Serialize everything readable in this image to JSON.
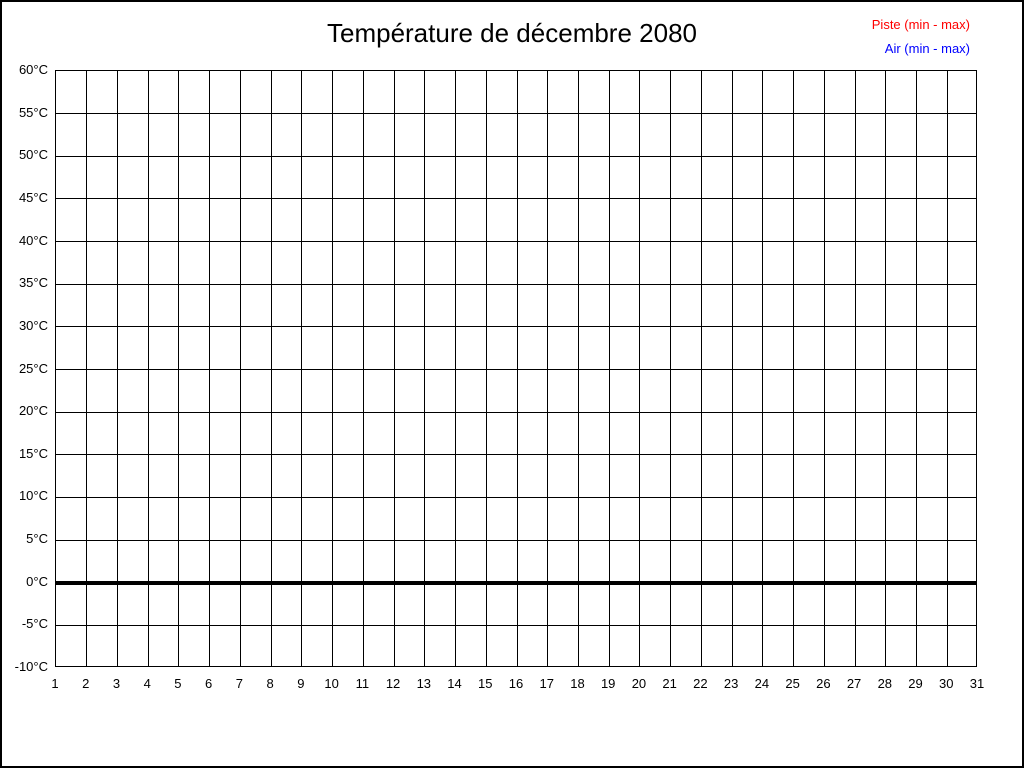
{
  "title": "Température de décembre 2080",
  "legend": {
    "items": [
      {
        "label": "Piste (min - max)",
        "color": "#ff0000"
      },
      {
        "label": "Air (min - max)",
        "color": "#0000ff"
      }
    ]
  },
  "colors": {
    "background": "#ffffff",
    "grid": "#000000",
    "border": "#000000",
    "title": "#000000",
    "piste": "#ff0000",
    "air": "#0000ff"
  },
  "chart_data": {
    "type": "line",
    "title": "Température de décembre 2080",
    "x": [
      1,
      2,
      3,
      4,
      5,
      6,
      7,
      8,
      9,
      10,
      11,
      12,
      13,
      14,
      15,
      16,
      17,
      18,
      19,
      20,
      21,
      22,
      23,
      24,
      25,
      26,
      27,
      28,
      29,
      30,
      31
    ],
    "x_tick_labels": [
      "1",
      "2",
      "3",
      "4",
      "5",
      "6",
      "7",
      "8",
      "9",
      "10",
      "11",
      "12",
      "13",
      "14",
      "15",
      "16",
      "17",
      "18",
      "19",
      "20",
      "21",
      "22",
      "23",
      "24",
      "25",
      "26",
      "27",
      "28",
      "29",
      "30",
      "31"
    ],
    "xlim": [
      1,
      31
    ],
    "y_ticks": [
      60,
      55,
      50,
      45,
      40,
      35,
      30,
      25,
      20,
      15,
      10,
      5,
      0,
      -5,
      -10
    ],
    "y_tick_labels": [
      "60°C",
      "55°C",
      "50°C",
      "45°C",
      "40°C",
      "35°C",
      "30°C",
      "25°C",
      "20°C",
      "15°C",
      "10°C",
      "5°C",
      "0°C",
      "-5°C",
      "-10°C"
    ],
    "ylim": [
      -10,
      60
    ],
    "grid": "on",
    "legend_position": "top-right",
    "zero_line": {
      "value": 0,
      "style": "thick-black"
    },
    "series": [
      {
        "name": "Piste (min - max)",
        "color": "#ff0000",
        "values": []
      },
      {
        "name": "Air (min - max)",
        "color": "#0000ff",
        "values": []
      }
    ]
  }
}
